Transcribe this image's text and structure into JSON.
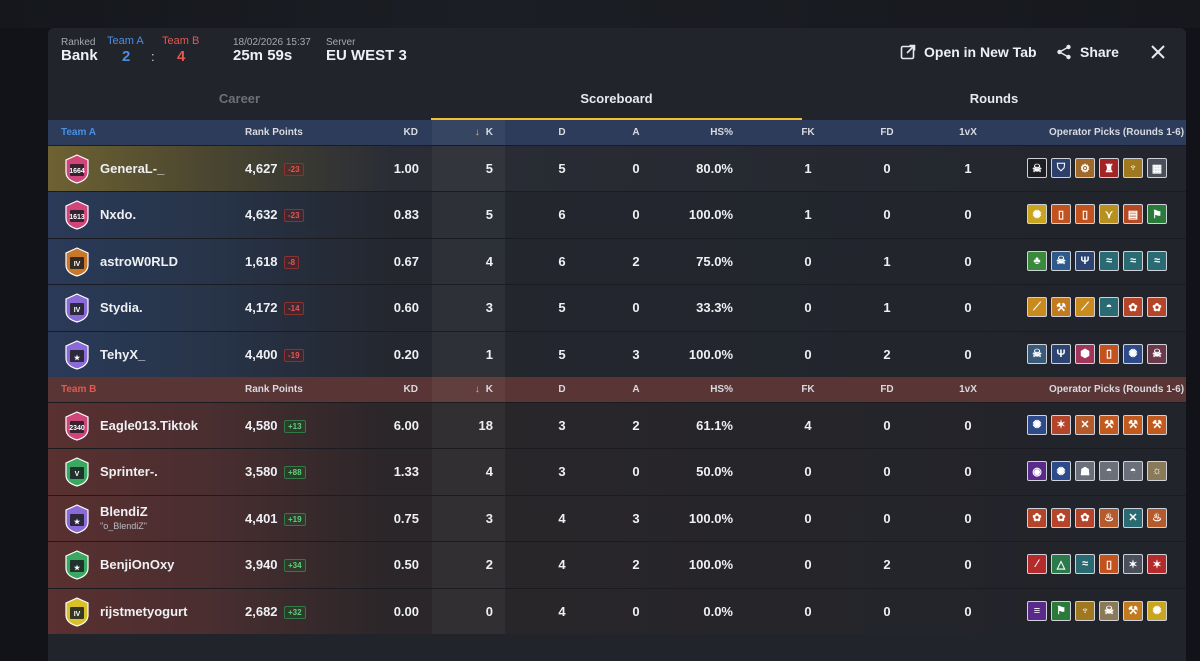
{
  "match": {
    "mode_label": "Ranked",
    "map": "Bank",
    "team_a_label": "Team A",
    "team_b_label": "Team B",
    "score_a": "2",
    "score_sep": ":",
    "score_b": "4",
    "datetime": "18/02/2026 15:37",
    "duration": "25m 59s",
    "server_label": "Server",
    "server": "EU WEST 3"
  },
  "actions": {
    "open_new_tab": "Open in New Tab",
    "share": "Share"
  },
  "tabs": [
    {
      "label": "Career",
      "state": "disabled"
    },
    {
      "label": "Scoreboard",
      "state": "active"
    },
    {
      "label": "Rounds",
      "state": "normal"
    }
  ],
  "columns": {
    "rank_points": "Rank Points",
    "kd": "KD",
    "k": "K",
    "d": "D",
    "a": "A",
    "hs": "HS%",
    "fk": "FK",
    "fd": "FD",
    "onevx": "1vX",
    "onevx_b": "1vX",
    "operators": "Operator Picks (Rounds 1-6)"
  },
  "colors": {
    "team_a": "#4b8fe4",
    "team_b": "#e05a4f",
    "accent": "#f2c12e"
  },
  "team_a": {
    "label": "Team A",
    "players": [
      {
        "name": "GeneraL-_",
        "sub": "",
        "rank_num": "1664",
        "rank_color": "#d0457a",
        "row_tint": "gold",
        "rp": "4,627",
        "delta": "-23",
        "kd": "1.00",
        "k": "5",
        "d": "5",
        "a": "0",
        "hs": "80.0%",
        "fk": "1",
        "fd": "0",
        "onevx": "1",
        "ops": [
          {
            "icon": "skull-icon",
            "bg": "#1d1d22"
          },
          {
            "icon": "shield-icon",
            "bg": "#2d3f6b"
          },
          {
            "icon": "gear-icon",
            "bg": "#a0692a"
          },
          {
            "icon": "tower-icon",
            "bg": "#a32424"
          },
          {
            "icon": "horns-icon",
            "bg": "#a0781f"
          },
          {
            "icon": "grid-icon",
            "bg": "#4a4f5a"
          }
        ]
      },
      {
        "name": "Nxdo.",
        "sub": "",
        "rank_num": "1613",
        "rank_color": "#d0457a",
        "row_tint": "blue",
        "rp": "4,632",
        "delta": "-23",
        "kd": "0.83",
        "k": "5",
        "d": "6",
        "a": "0",
        "hs": "100.0%",
        "fk": "1",
        "fd": "0",
        "onevx": "0",
        "ops": [
          {
            "icon": "burst-icon",
            "bg": "#c9a520"
          },
          {
            "icon": "door-icon",
            "bg": "#c2521e"
          },
          {
            "icon": "door-icon",
            "bg": "#c2521e"
          },
          {
            "icon": "wings-icon",
            "bg": "#b8901e"
          },
          {
            "icon": "brick-icon",
            "bg": "#b54a22"
          },
          {
            "icon": "flag-icon",
            "bg": "#2a7a3a"
          }
        ]
      },
      {
        "name": "astroW0RLD",
        "sub": "",
        "rank_num": "IV",
        "rank_color": "#c8782a",
        "row_tint": "blue",
        "rp": "1,618",
        "delta": "-8",
        "kd": "0.67",
        "k": "4",
        "d": "6",
        "a": "2",
        "hs": "75.0%",
        "fk": "0",
        "fd": "1",
        "onevx": "0",
        "ops": [
          {
            "icon": "clover-icon",
            "bg": "#3a8a3e"
          },
          {
            "icon": "skull-icon",
            "bg": "#2d5a8a"
          },
          {
            "icon": "trident-icon",
            "bg": "#2d4470"
          },
          {
            "icon": "wave-icon",
            "bg": "#2a6a72"
          },
          {
            "icon": "wave-icon",
            "bg": "#2a6a72"
          },
          {
            "icon": "wave-icon",
            "bg": "#2a6a72"
          }
        ]
      },
      {
        "name": "Stydia.",
        "sub": "",
        "rank_num": "IV",
        "rank_color": "#8a6ad8",
        "row_tint": "blue",
        "rp": "4,172",
        "delta": "-14",
        "kd": "0.60",
        "k": "3",
        "d": "5",
        "a": "0",
        "hs": "33.3%",
        "fk": "0",
        "fd": "1",
        "onevx": "0",
        "ops": [
          {
            "icon": "claw-icon",
            "bg": "#c98a1e"
          },
          {
            "icon": "tool-icon",
            "bg": "#c27a1e"
          },
          {
            "icon": "claw-icon",
            "bg": "#c98a1e"
          },
          {
            "icon": "mask-icon",
            "bg": "#2a6a72"
          },
          {
            "icon": "lotus-icon",
            "bg": "#b5452a"
          },
          {
            "icon": "lotus-icon",
            "bg": "#b5452a"
          }
        ]
      },
      {
        "name": "TehyX_",
        "sub": "",
        "rank_num": "★",
        "rank_color": "#8a6ad8",
        "row_tint": "blue",
        "rp": "4,400",
        "delta": "-19",
        "kd": "0.20",
        "k": "1",
        "d": "5",
        "a": "3",
        "hs": "100.0%",
        "fk": "0",
        "fd": "2",
        "onevx": "0",
        "ops": [
          {
            "icon": "skull-icon",
            "bg": "#3a5a7a"
          },
          {
            "icon": "trident-icon",
            "bg": "#2d4470"
          },
          {
            "icon": "badge-icon",
            "bg": "#a3345a"
          },
          {
            "icon": "door-icon",
            "bg": "#c2521e"
          },
          {
            "icon": "burst-icon",
            "bg": "#2d4a8a"
          },
          {
            "icon": "skull-icon",
            "bg": "#6a3a4a"
          }
        ]
      }
    ]
  },
  "team_b": {
    "label": "Team B",
    "players": [
      {
        "name": "Eagle013.Tiktok",
        "sub": "",
        "rank_num": "2340",
        "rank_color": "#d0457a",
        "row_tint": "red",
        "rp": "4,580",
        "delta": "+13",
        "kd": "6.00",
        "k": "18",
        "d": "3",
        "a": "2",
        "hs": "61.1%",
        "fk": "4",
        "fd": "0",
        "onevx": "0",
        "ops": [
          {
            "icon": "burst-icon",
            "bg": "#2d4a8a"
          },
          {
            "icon": "star-icon",
            "bg": "#b5452a"
          },
          {
            "icon": "cross-icon",
            "bg": "#b55a2a"
          },
          {
            "icon": "tool-icon",
            "bg": "#c25a1e"
          },
          {
            "icon": "tool-icon",
            "bg": "#c25a1e"
          },
          {
            "icon": "tool-icon",
            "bg": "#c25a1e"
          }
        ]
      },
      {
        "name": "Sprinter-.",
        "sub": "",
        "rank_num": "V",
        "rank_color": "#3aa860",
        "row_tint": "red",
        "rp": "3,580",
        "delta": "+88",
        "kd": "1.33",
        "k": "4",
        "d": "3",
        "a": "0",
        "hs": "50.0%",
        "fk": "0",
        "fd": "0",
        "onevx": "0",
        "ops": [
          {
            "icon": "eye-icon",
            "bg": "#5a2a8a"
          },
          {
            "icon": "burst-icon",
            "bg": "#2d4a8a"
          },
          {
            "icon": "ghost-icon",
            "bg": "#6a6f7a"
          },
          {
            "icon": "mask-icon",
            "bg": "#6a6f7a"
          },
          {
            "icon": "mask-icon",
            "bg": "#6a6f7a"
          },
          {
            "icon": "sun-icon",
            "bg": "#8a7a5a"
          }
        ]
      },
      {
        "name": "BlendiZ",
        "sub": "\"o_BlendiZ\"",
        "rank_num": "★",
        "rank_color": "#8a6ad8",
        "row_tint": "red",
        "rp": "4,401",
        "delta": "+19",
        "kd": "0.75",
        "k": "3",
        "d": "4",
        "a": "3",
        "hs": "100.0%",
        "fk": "0",
        "fd": "0",
        "onevx": "0",
        "ops": [
          {
            "icon": "lotus-icon",
            "bg": "#b5452a"
          },
          {
            "icon": "lotus-icon",
            "bg": "#b5452a"
          },
          {
            "icon": "lotus-icon",
            "bg": "#b5452a"
          },
          {
            "icon": "flame-icon",
            "bg": "#b55a2a"
          },
          {
            "icon": "cross-icon",
            "bg": "#2a6a72"
          },
          {
            "icon": "flame-icon",
            "bg": "#b55a2a"
          }
        ]
      },
      {
        "name": "BenjiOnOxy",
        "sub": "",
        "rank_num": "★",
        "rank_color": "#3aa860",
        "row_tint": "red",
        "rp": "3,940",
        "delta": "+34",
        "kd": "0.50",
        "k": "2",
        "d": "4",
        "a": "2",
        "hs": "100.0%",
        "fk": "0",
        "fd": "2",
        "onevx": "0",
        "ops": [
          {
            "icon": "slash-icon",
            "bg": "#b52a2a"
          },
          {
            "icon": "triangle-icon",
            "bg": "#2a7a4a"
          },
          {
            "icon": "wave-icon",
            "bg": "#2a6a72"
          },
          {
            "icon": "door-icon",
            "bg": "#c2521e"
          },
          {
            "icon": "star-icon",
            "bg": "#4a4f5a"
          },
          {
            "icon": "star-icon",
            "bg": "#b52a2a"
          }
        ]
      },
      {
        "name": "rijstmetyogurt",
        "sub": "",
        "rank_num": "IV",
        "rank_color": "#d8c02a",
        "row_tint": "red",
        "rp": "2,682",
        "delta": "+32",
        "kd": "0.00",
        "k": "0",
        "d": "4",
        "a": "0",
        "hs": "0.0%",
        "fk": "0",
        "fd": "0",
        "onevx": "0",
        "ops": [
          {
            "icon": "stripes-icon",
            "bg": "#5a2a8a"
          },
          {
            "icon": "flag-icon",
            "bg": "#2a7a3a"
          },
          {
            "icon": "horns-icon",
            "bg": "#a0781f"
          },
          {
            "icon": "skull-icon",
            "bg": "#8a7a5a"
          },
          {
            "icon": "tool-icon",
            "bg": "#c27a1e"
          },
          {
            "icon": "burst-icon",
            "bg": "#c9a520"
          }
        ]
      }
    ]
  }
}
